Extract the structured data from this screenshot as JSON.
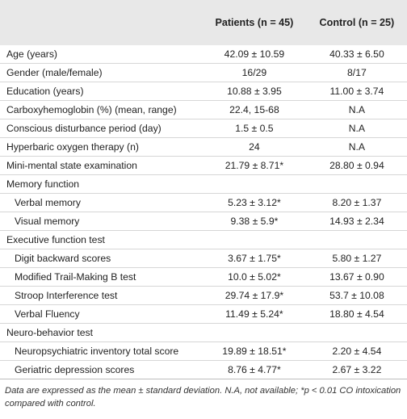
{
  "table": {
    "headers": [
      "Patients (n = 45)",
      "Control (n = 25)"
    ],
    "sections": [
      {
        "rows": [
          [
            "Age (years)",
            "42.09 ± 10.59",
            "40.33 ± 6.50"
          ],
          [
            "Gender (male/female)",
            "16/29",
            "8/17"
          ],
          [
            "Education (years)",
            "10.88 ± 3.95",
            "11.00 ± 3.74"
          ],
          [
            "Carboxyhemoglobin (%) (mean, range)",
            "22.4, 15-68",
            "N.A"
          ],
          [
            "Conscious disturbance period (day)",
            "1.5 ± 0.5",
            "N.A"
          ],
          [
            "Hyperbaric oxygen therapy (n)",
            "24",
            "N.A"
          ],
          [
            "Mini-mental state examination",
            "21.79 ± 8.71*",
            "28.80 ± 0.94"
          ]
        ]
      },
      {
        "title": "Memory function",
        "rows": [
          [
            "Verbal memory",
            "5.23 ± 3.12*",
            "8.20 ± 1.37"
          ],
          [
            "Visual memory",
            "9.38 ± 5.9*",
            "14.93 ± 2.34"
          ]
        ]
      },
      {
        "title": "Executive function test",
        "rows": [
          [
            "Digit backward scores",
            "3.67 ± 1.75*",
            "5.80 ± 1.27"
          ],
          [
            "Modified Trail-Making B test",
            "10.0 ± 5.02*",
            "13.67 ± 0.90"
          ],
          [
            "Stroop Interference test",
            "29.74 ± 17.9*",
            "53.7 ± 10.08"
          ],
          [
            "Verbal Fluency",
            "11.49 ± 5.24*",
            "18.80 ± 4.54"
          ]
        ]
      },
      {
        "title": "Neuro-behavior test",
        "rows": [
          [
            "Neuropsychiatric inventory total score",
            "19.89 ± 18.51*",
            "2.20 ± 4.54"
          ],
          [
            "Geriatric depression scores",
            "8.76 ± 4.77*",
            "2.67 ± 3.22"
          ]
        ]
      }
    ]
  },
  "footnote": "Data are expressed as the mean ± standard deviation. N.A, not available; *p < 0.01 CO intoxication compared with control."
}
